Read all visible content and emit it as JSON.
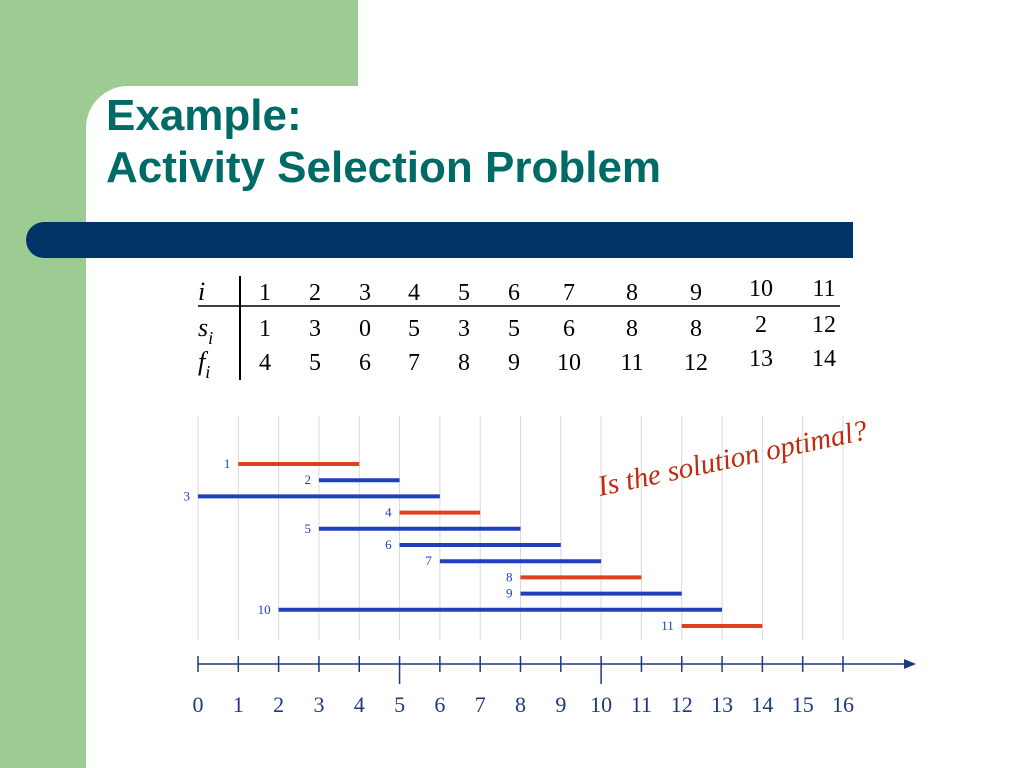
{
  "colors": {
    "sidebar_green": "#9ccb93",
    "title_teal": "#006a66",
    "banner_navy": "#003466",
    "selected_red": "#e2401c",
    "other_blue": "#1f3fbe",
    "annotation_red": "#c02a10",
    "label_blue": "#1f3fbe",
    "grid": "#d9d9d9",
    "axis": "#1f3a7a"
  },
  "title": {
    "line1": "Example:",
    "line2": "Activity Selection Problem"
  },
  "table": {
    "rows": [
      {
        "name": "i",
        "values": [
          "1",
          "2",
          "3",
          "4",
          "5",
          "6",
          "7",
          "8",
          "9",
          "10",
          "11"
        ]
      },
      {
        "name": "si",
        "values": [
          "1",
          "3",
          "0",
          "5",
          "3",
          "5",
          "6",
          "8",
          "8",
          "2",
          "12"
        ]
      },
      {
        "name": "fi",
        "values": [
          "4",
          "5",
          "6",
          "7",
          "8",
          "9",
          "10",
          "11",
          "12",
          "13",
          "14"
        ]
      }
    ]
  },
  "annotation": "Is the solution optimal?",
  "chart_data": {
    "type": "gantt",
    "x_ticks": [
      "0",
      "1",
      "2",
      "3",
      "4",
      "5",
      "6",
      "7",
      "8",
      "9",
      "10",
      "11",
      "12",
      "13",
      "14",
      "15",
      "16"
    ],
    "xlim": [
      0,
      16
    ],
    "grid": true,
    "activities": [
      {
        "label": "1",
        "start": 1,
        "finish": 4,
        "selected": true
      },
      {
        "label": "2",
        "start": 3,
        "finish": 5,
        "selected": false
      },
      {
        "label": "3",
        "start": 0,
        "finish": 6,
        "selected": false
      },
      {
        "label": "4",
        "start": 5,
        "finish": 7,
        "selected": true
      },
      {
        "label": "5",
        "start": 3,
        "finish": 8,
        "selected": false
      },
      {
        "label": "6",
        "start": 5,
        "finish": 9,
        "selected": false
      },
      {
        "label": "7",
        "start": 6,
        "finish": 10,
        "selected": false
      },
      {
        "label": "8",
        "start": 8,
        "finish": 11,
        "selected": true
      },
      {
        "label": "9",
        "start": 8,
        "finish": 12,
        "selected": false
      },
      {
        "label": "10",
        "start": 2,
        "finish": 13,
        "selected": false
      },
      {
        "label": "11",
        "start": 12,
        "finish": 14,
        "selected": true
      }
    ]
  }
}
